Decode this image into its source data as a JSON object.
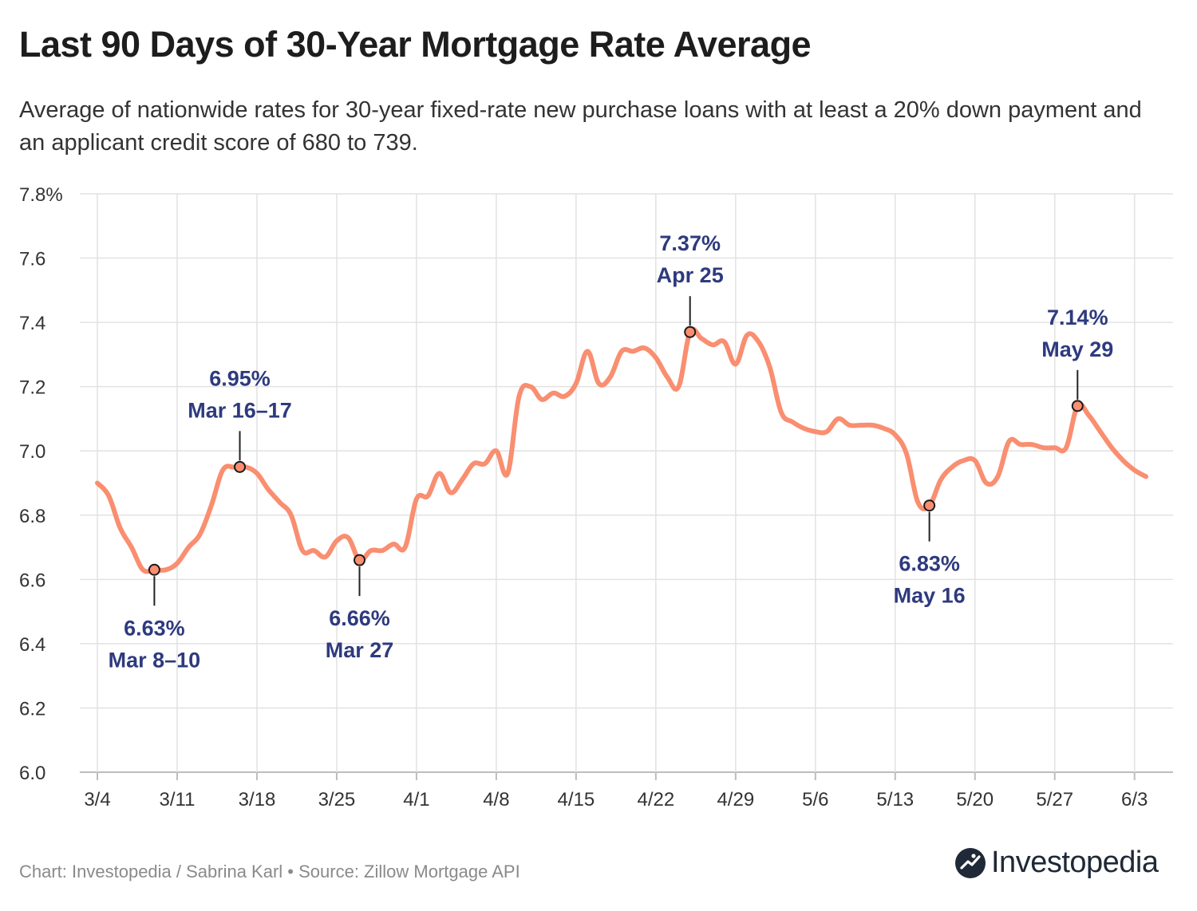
{
  "page": {
    "title": "Last 90 Days of 30-Year Mortgage Rate Average",
    "subtitle": "Average of nationwide rates for 30-year fixed-rate new purchase loans with at least a 20% down payment and an applicant credit score of 680 to 739.",
    "footer": "Chart: Investopedia / Sabrina Karl • Source: Zillow Mortgage API",
    "brand": "Investopedia"
  },
  "colors": {
    "line": "#f98e70",
    "annotation": "#2e3a7e",
    "grid": "#e2e2e2",
    "axis_text": "#333333"
  },
  "chart_data": {
    "type": "line",
    "title": "Last 90 Days of 30-Year Mortgage Rate Average",
    "xlabel": "",
    "ylabel": "",
    "xlim": [
      0,
      92
    ],
    "ylim": [
      6.0,
      7.8
    ],
    "grid": true,
    "x_ticks": [
      {
        "day": 0,
        "label": "3/4"
      },
      {
        "day": 7,
        "label": "3/11"
      },
      {
        "day": 14,
        "label": "3/18"
      },
      {
        "day": 21,
        "label": "3/25"
      },
      {
        "day": 28,
        "label": "4/1"
      },
      {
        "day": 35,
        "label": "4/8"
      },
      {
        "day": 42,
        "label": "4/15"
      },
      {
        "day": 49,
        "label": "4/22"
      },
      {
        "day": 56,
        "label": "4/29"
      },
      {
        "day": 63,
        "label": "5/6"
      },
      {
        "day": 70,
        "label": "5/13"
      },
      {
        "day": 77,
        "label": "5/20"
      },
      {
        "day": 84,
        "label": "5/27"
      },
      {
        "day": 91,
        "label": "6/3"
      }
    ],
    "y_ticks": [
      {
        "value": 6.0,
        "label": "6.0"
      },
      {
        "value": 6.2,
        "label": "6.2"
      },
      {
        "value": 6.4,
        "label": "6.4"
      },
      {
        "value": 6.6,
        "label": "6.6"
      },
      {
        "value": 6.8,
        "label": "6.8"
      },
      {
        "value": 7.0,
        "label": "7.0"
      },
      {
        "value": 7.2,
        "label": "7.2"
      },
      {
        "value": 7.4,
        "label": "7.4"
      },
      {
        "value": 7.6,
        "label": "7.6"
      },
      {
        "value": 7.8,
        "label": "7.8%"
      }
    ],
    "series": [
      {
        "name": "30-Year Mortgage Rate Average",
        "x": [
          0,
          1,
          2,
          3,
          4,
          5,
          6,
          7,
          8,
          9,
          10,
          11,
          12,
          13,
          14,
          15,
          16,
          17,
          18,
          19,
          20,
          21,
          22,
          23,
          24,
          25,
          26,
          27,
          28,
          29,
          30,
          31,
          32,
          33,
          34,
          35,
          36,
          37,
          38,
          39,
          40,
          41,
          42,
          43,
          44,
          45,
          46,
          47,
          48,
          49,
          50,
          51,
          52,
          53,
          54,
          55,
          56,
          57,
          58,
          59,
          60,
          61,
          62,
          63,
          64,
          65,
          66,
          67,
          68,
          69,
          70,
          71,
          72,
          73,
          74,
          75,
          76,
          77,
          78,
          79,
          80,
          81,
          82,
          83,
          84,
          85,
          86,
          87,
          88,
          89,
          90,
          91,
          92
        ],
        "values": [
          6.9,
          6.86,
          6.76,
          6.7,
          6.63,
          6.63,
          6.63,
          6.65,
          6.7,
          6.74,
          6.83,
          6.94,
          6.95,
          6.95,
          6.93,
          6.88,
          6.84,
          6.8,
          6.69,
          6.69,
          6.67,
          6.72,
          6.73,
          6.66,
          6.69,
          6.69,
          6.71,
          6.7,
          6.85,
          6.86,
          6.93,
          6.87,
          6.91,
          6.96,
          6.96,
          7.0,
          6.93,
          7.17,
          7.2,
          7.16,
          7.18,
          7.17,
          7.21,
          7.31,
          7.21,
          7.23,
          7.31,
          7.31,
          7.32,
          7.29,
          7.23,
          7.2,
          7.37,
          7.35,
          7.33,
          7.34,
          7.27,
          7.36,
          7.34,
          7.26,
          7.12,
          7.09,
          7.07,
          7.06,
          7.06,
          7.1,
          7.08,
          7.08,
          7.08,
          7.07,
          7.05,
          6.99,
          6.84,
          6.83,
          6.91,
          6.95,
          6.97,
          6.97,
          6.9,
          6.92,
          7.03,
          7.02,
          7.02,
          7.01,
          7.01,
          7.01,
          7.14,
          7.11,
          7.06,
          7.01,
          6.97,
          6.94,
          6.92
        ]
      }
    ],
    "annotations": [
      {
        "x": 5,
        "y": 6.63,
        "value_label": "6.63%",
        "date_label": "Mar 8–10",
        "position": "below"
      },
      {
        "x": 12.5,
        "y": 6.95,
        "value_label": "6.95%",
        "date_label": "Mar 16–17",
        "position": "above"
      },
      {
        "x": 23,
        "y": 6.66,
        "value_label": "6.66%",
        "date_label": "Mar 27",
        "position": "below"
      },
      {
        "x": 52,
        "y": 7.37,
        "value_label": "7.37%",
        "date_label": "Apr 25",
        "position": "above"
      },
      {
        "x": 73,
        "y": 6.83,
        "value_label": "6.83%",
        "date_label": "May 16",
        "position": "below"
      },
      {
        "x": 86,
        "y": 7.14,
        "value_label": "7.14%",
        "date_label": "May 29",
        "position": "above"
      }
    ]
  }
}
